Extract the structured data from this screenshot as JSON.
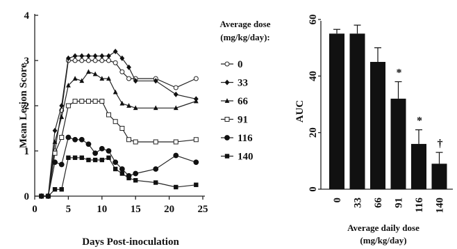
{
  "chart_data": [
    {
      "type": "line",
      "xlabel": "Days Post-inoculation",
      "ylabel": "Mean Lesion Score",
      "xlim": [
        0,
        25
      ],
      "ylim": [
        0,
        4
      ],
      "xticks": [
        "0",
        "5",
        "10",
        "15",
        "20",
        "25"
      ],
      "yticks": [
        "0",
        "1",
        "2",
        "3",
        "4"
      ],
      "legend_title": [
        "Average dose",
        "(mg/kg/day):"
      ],
      "legend_position": "right",
      "series": [
        {
          "name": "0",
          "marker": "open-circle",
          "points": [
            [
              1,
              0
            ],
            [
              2,
              0
            ],
            [
              3,
              1.0
            ],
            [
              4,
              1.9
            ],
            [
              5,
              3.0
            ],
            [
              6,
              3.0
            ],
            [
              7,
              3.0
            ],
            [
              8,
              3.0
            ],
            [
              9,
              3.0
            ],
            [
              10,
              3.0
            ],
            [
              11,
              3.0
            ],
            [
              12,
              2.95
            ],
            [
              13,
              2.75
            ],
            [
              14,
              2.6
            ],
            [
              15,
              2.6
            ],
            [
              18,
              2.6
            ],
            [
              21,
              2.4
            ],
            [
              24,
              2.6
            ]
          ]
        },
        {
          "name": "33",
          "marker": "diamond",
          "points": [
            [
              1,
              0
            ],
            [
              2,
              0
            ],
            [
              3,
              1.45
            ],
            [
              4,
              2.0
            ],
            [
              5,
              3.05
            ],
            [
              6,
              3.1
            ],
            [
              7,
              3.1
            ],
            [
              8,
              3.1
            ],
            [
              9,
              3.1
            ],
            [
              10,
              3.1
            ],
            [
              11,
              3.1
            ],
            [
              12,
              3.2
            ],
            [
              13,
              3.05
            ],
            [
              14,
              2.85
            ],
            [
              15,
              2.55
            ],
            [
              18,
              2.55
            ],
            [
              21,
              2.25
            ],
            [
              24,
              2.15
            ]
          ]
        },
        {
          "name": "66",
          "marker": "triangle",
          "points": [
            [
              1,
              0
            ],
            [
              2,
              0
            ],
            [
              3,
              1.2
            ],
            [
              4,
              1.75
            ],
            [
              5,
              2.45
            ],
            [
              6,
              2.6
            ],
            [
              7,
              2.55
            ],
            [
              8,
              2.75
            ],
            [
              9,
              2.7
            ],
            [
              10,
              2.6
            ],
            [
              11,
              2.6
            ],
            [
              12,
              2.3
            ],
            [
              13,
              2.05
            ],
            [
              14,
              2.0
            ],
            [
              15,
              1.95
            ],
            [
              18,
              1.95
            ],
            [
              21,
              1.95
            ],
            [
              24,
              2.1
            ]
          ]
        },
        {
          "name": "91",
          "marker": "open-square",
          "points": [
            [
              1,
              0
            ],
            [
              2,
              0
            ],
            [
              3,
              0.95
            ],
            [
              4,
              1.3
            ],
            [
              5,
              2.0
            ],
            [
              6,
              2.1
            ],
            [
              7,
              2.1
            ],
            [
              8,
              2.1
            ],
            [
              9,
              2.1
            ],
            [
              10,
              2.1
            ],
            [
              11,
              1.8
            ],
            [
              12,
              1.65
            ],
            [
              13,
              1.5
            ],
            [
              14,
              1.25
            ],
            [
              15,
              1.2
            ],
            [
              18,
              1.2
            ],
            [
              21,
              1.2
            ],
            [
              24,
              1.25
            ]
          ]
        },
        {
          "name": "116",
          "marker": "filled-circle",
          "points": [
            [
              1,
              0
            ],
            [
              2,
              0
            ],
            [
              3,
              0.75
            ],
            [
              4,
              0.7
            ],
            [
              5,
              1.3
            ],
            [
              6,
              1.25
            ],
            [
              7,
              1.25
            ],
            [
              8,
              1.15
            ],
            [
              9,
              0.95
            ],
            [
              10,
              1.05
            ],
            [
              11,
              1.0
            ],
            [
              12,
              0.75
            ],
            [
              13,
              0.6
            ],
            [
              14,
              0.45
            ],
            [
              15,
              0.5
            ],
            [
              18,
              0.6
            ],
            [
              21,
              0.9
            ],
            [
              24,
              0.75
            ]
          ]
        },
        {
          "name": "140",
          "marker": "filled-square",
          "points": [
            [
              1,
              0
            ],
            [
              2,
              0
            ],
            [
              3,
              0.15
            ],
            [
              4,
              0.15
            ],
            [
              5,
              0.85
            ],
            [
              6,
              0.85
            ],
            [
              7,
              0.85
            ],
            [
              8,
              0.8
            ],
            [
              9,
              0.8
            ],
            [
              10,
              0.8
            ],
            [
              11,
              0.85
            ],
            [
              12,
              0.6
            ],
            [
              13,
              0.5
            ],
            [
              14,
              0.4
            ],
            [
              15,
              0.35
            ],
            [
              18,
              0.3
            ],
            [
              21,
              0.2
            ],
            [
              24,
              0.25
            ]
          ]
        }
      ]
    },
    {
      "type": "bar",
      "xlabel": [
        "Average daily dose",
        "(mg/kg/day)"
      ],
      "ylabel": "AUC",
      "ylim": [
        0,
        60
      ],
      "yticks": [
        "0",
        "20",
        "40",
        "60"
      ],
      "categories": [
        "0",
        "33",
        "66",
        "91",
        "116",
        "140"
      ],
      "values": [
        55,
        55,
        45,
        32,
        16,
        9
      ],
      "errors": [
        1.5,
        3,
        5,
        6,
        5,
        4
      ],
      "annotations": [
        "",
        "",
        "",
        "*",
        "*",
        "†"
      ]
    }
  ]
}
